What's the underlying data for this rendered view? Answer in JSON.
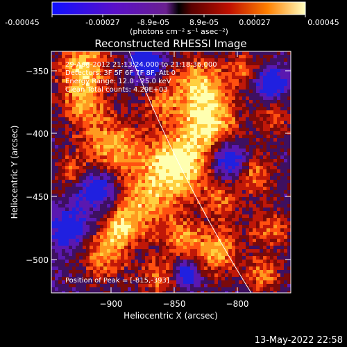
{
  "colorbar": {
    "ticks": [
      "-0.00045",
      "-0.00027",
      "-8.9e-05",
      "8.9e-05",
      "0.00027",
      "0.00045"
    ],
    "unit_label": "(photons cm⁻² s⁻¹ asec⁻²)"
  },
  "plot": {
    "title": "Reconstructed RHESSI Image",
    "xlabel": "Heliocentric X (arcsec)",
    "ylabel": "Heliocentric Y (arcsec)",
    "x_ticks": [
      "−900",
      "−850",
      "−800"
    ],
    "y_ticks": [
      "−350",
      "−400",
      "−450",
      "−500"
    ],
    "xlim": [
      -946,
      -791
    ],
    "ylim": [
      -527,
      -335
    ]
  },
  "annotations": {
    "time_range": "29-Aug-2012 21:13:24.000 to 21:18:36.000",
    "detectors": "Detectors: 3F 5F 6F 7F 8F, Att 0",
    "energy": "Energy Range: 12.0 - 25.0 keV",
    "clean": "Clean     Total counts: 4.29E+03",
    "peak": "Position of Peak = [-815,-393]"
  },
  "footer": {
    "timestamp": "13-May-2022 22:58"
  }
}
